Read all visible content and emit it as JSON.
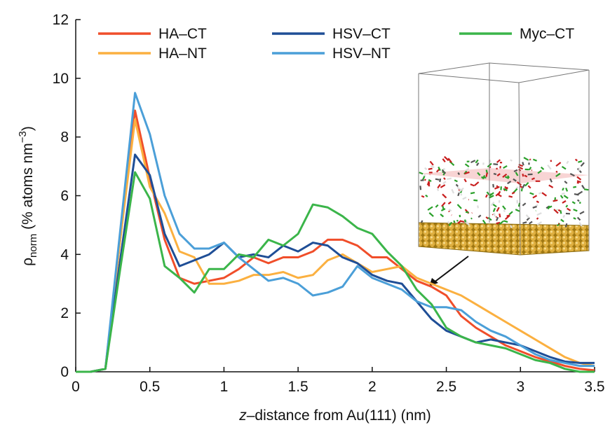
{
  "chart_data": {
    "type": "line",
    "xlabel": {
      "italic": "z",
      "rest": "–distance from Au(111) (nm)"
    },
    "ylabel": {
      "symbol": "ρ",
      "sub": "norm",
      "text": " (% atoms nm",
      "sup": "−3",
      "end": ")"
    },
    "x": [
      0,
      0.1,
      0.2,
      0.3,
      0.4,
      0.5,
      0.6,
      0.7,
      0.8,
      0.9,
      1.0,
      1.1,
      1.2,
      1.3,
      1.4,
      1.5,
      1.6,
      1.7,
      1.8,
      1.9,
      2.0,
      2.1,
      2.2,
      2.3,
      2.4,
      2.5,
      2.6,
      2.7,
      2.8,
      2.9,
      3.0,
      3.1,
      3.2,
      3.3,
      3.4,
      3.5
    ],
    "xlim": [
      0,
      3.5
    ],
    "ylim": [
      0,
      12
    ],
    "xticks": [
      0,
      0.5,
      1,
      1.5,
      2,
      2.5,
      3,
      3.5
    ],
    "yticks": [
      0,
      2,
      4,
      6,
      8,
      10,
      12
    ],
    "series": [
      {
        "name": "HA–CT",
        "color": "#f04e2a",
        "values": [
          0,
          0,
          0.1,
          4.5,
          8.9,
          6.6,
          4.5,
          3.2,
          3.0,
          3.1,
          3.2,
          3.5,
          3.9,
          3.7,
          3.9,
          3.9,
          4.1,
          4.5,
          4.5,
          4.3,
          3.9,
          3.9,
          3.5,
          3.1,
          2.9,
          2.6,
          1.9,
          1.5,
          1.2,
          0.9,
          0.7,
          0.5,
          0.35,
          0.2,
          0.1,
          0.05
        ]
      },
      {
        "name": "HA–NT",
        "color": "#fbb040",
        "values": [
          0,
          0,
          0.1,
          4.5,
          8.6,
          6.3,
          5.4,
          4.1,
          3.9,
          3.0,
          3.0,
          3.1,
          3.3,
          3.3,
          3.4,
          3.2,
          3.3,
          3.8,
          4.0,
          3.7,
          3.4,
          3.5,
          3.6,
          3.2,
          3.0,
          2.8,
          2.6,
          2.3,
          2.0,
          1.7,
          1.4,
          1.1,
          0.8,
          0.5,
          0.3,
          0.2
        ]
      },
      {
        "name": "HSV–CT",
        "color": "#1f4e96",
        "values": [
          0,
          0,
          0.1,
          3.8,
          7.4,
          6.7,
          4.7,
          3.6,
          3.8,
          4.0,
          4.4,
          3.9,
          4.0,
          3.9,
          4.3,
          4.1,
          4.4,
          4.3,
          3.9,
          3.7,
          3.3,
          3.1,
          3.0,
          2.4,
          1.8,
          1.4,
          1.2,
          1.0,
          1.1,
          1.0,
          0.9,
          0.7,
          0.5,
          0.35,
          0.3,
          0.3
        ]
      },
      {
        "name": "HSV–NT",
        "color": "#4b9fd8",
        "values": [
          0,
          0,
          0.1,
          4.8,
          9.5,
          8.1,
          6.0,
          4.7,
          4.2,
          4.2,
          4.4,
          3.9,
          3.5,
          3.1,
          3.2,
          3.0,
          2.6,
          2.7,
          2.9,
          3.6,
          3.2,
          3.0,
          2.8,
          2.4,
          2.2,
          2.2,
          2.1,
          1.7,
          1.4,
          1.2,
          0.9,
          0.6,
          0.4,
          0.3,
          0.2,
          0.2
        ]
      },
      {
        "name": "Myc–CT",
        "color": "#3bb54a",
        "values": [
          0,
          0,
          0.1,
          3.5,
          6.8,
          5.9,
          3.6,
          3.2,
          2.7,
          3.5,
          3.5,
          4.0,
          3.9,
          4.5,
          4.3,
          4.7,
          5.7,
          5.6,
          5.3,
          4.9,
          4.7,
          4.1,
          3.6,
          2.8,
          2.3,
          1.5,
          1.2,
          1.0,
          0.9,
          0.8,
          0.6,
          0.4,
          0.3,
          0.1,
          0.0,
          0.0
        ]
      }
    ]
  }
}
